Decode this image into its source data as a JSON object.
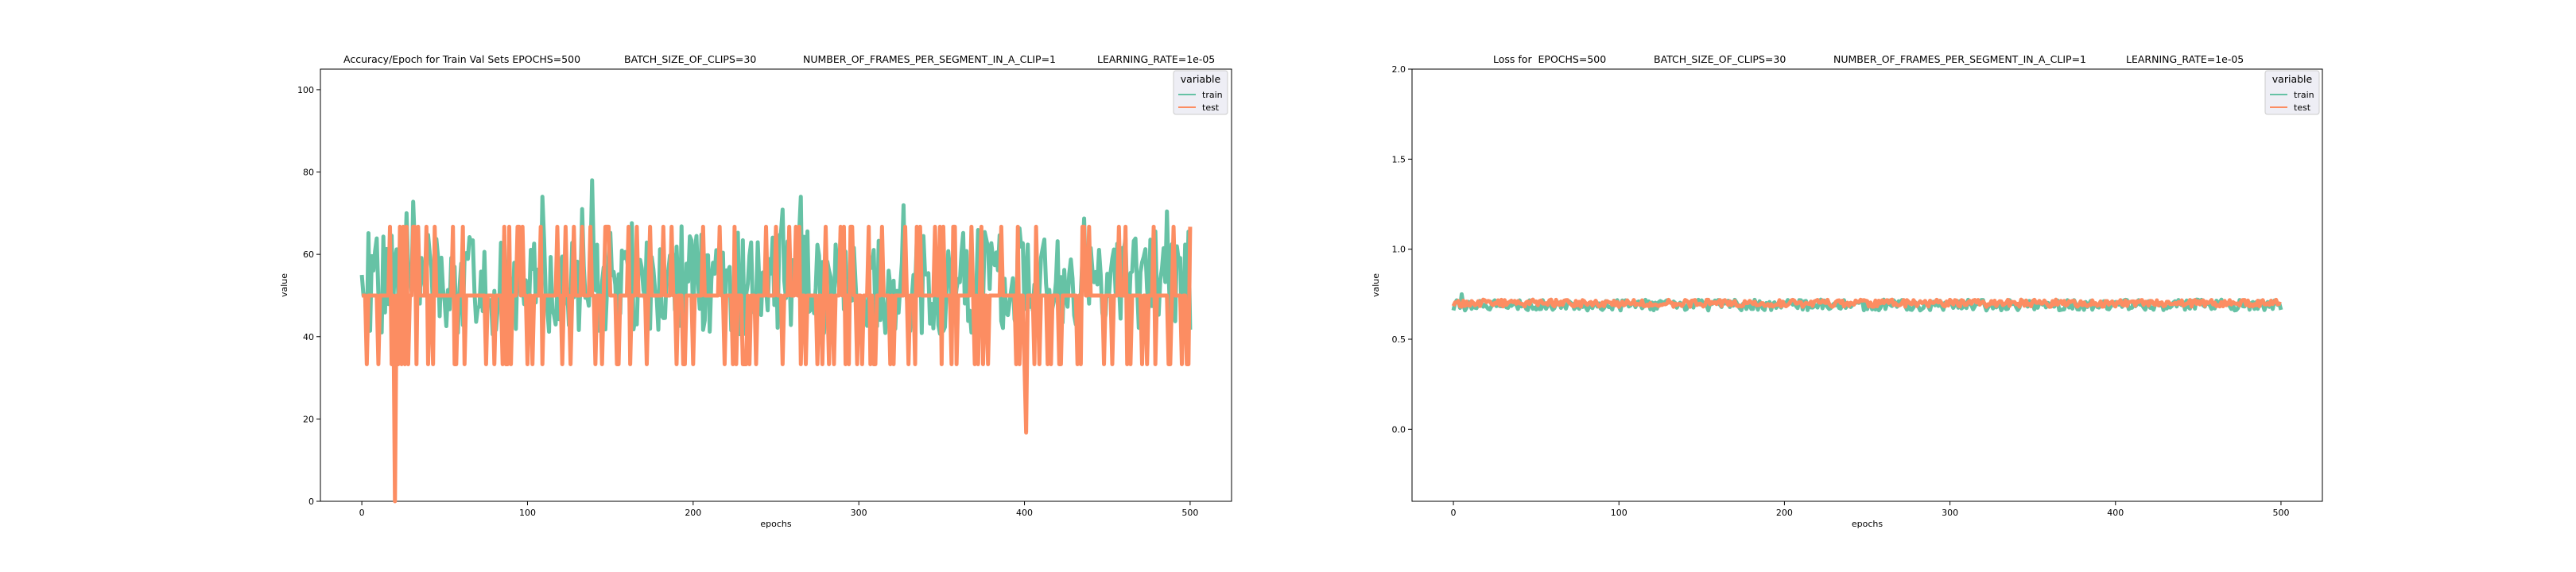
{
  "chart_data": [
    {
      "type": "line",
      "title_segments": [
        "Accuracy/Epoch for Train Val Sets EPOCHS=500",
        "BATCH_SIZE_OF_CLIPS=30",
        "NUMBER_OF_FRAMES_PER_SEGMENT_IN_A_CLIP=1",
        "LEARNING_RATE=1e-05"
      ],
      "xlabel": "epochs",
      "ylabel": "value",
      "xlim": [
        -25,
        525
      ],
      "ylim": [
        0,
        105
      ],
      "xticks": [
        0,
        100,
        200,
        300,
        400,
        500
      ],
      "yticks": [
        0,
        20,
        40,
        60,
        80,
        100
      ],
      "legend": {
        "title": "variable",
        "placement": "top-right",
        "entries": [
          "train",
          "test"
        ]
      },
      "series": [
        {
          "name": "train",
          "color": "#66c2a5",
          "generator": "accuracy_train",
          "n_points": 501,
          "x_start": 0,
          "baseline": 53,
          "spread": 9,
          "peak": 78,
          "peak_epoch": 139
        },
        {
          "name": "test",
          "color": "#fc8d62",
          "generator": "accuracy_test",
          "n_points": 501,
          "x_start": 0,
          "baseline": 50,
          "high": 66.7,
          "low": 33.3,
          "min_value": 0,
          "min_epoch": 20,
          "dip_value": 16.7,
          "dip_epoch": 401
        }
      ]
    },
    {
      "type": "line",
      "title_segments": [
        "Loss for  EPOCHS=500",
        "BATCH_SIZE_OF_CLIPS=30",
        "NUMBER_OF_FRAMES_PER_SEGMENT_IN_A_CLIP=1",
        "LEARNING_RATE=1e-05"
      ],
      "xlabel": "epochs",
      "ylabel": "value",
      "xlim": [
        -25,
        525
      ],
      "ylim": [
        -0.4,
        2.0
      ],
      "xticks": [
        0,
        100,
        200,
        300,
        400,
        500
      ],
      "yticks": [
        0.0,
        0.5,
        1.0,
        1.5,
        2.0
      ],
      "legend": {
        "title": "variable",
        "placement": "top-right",
        "entries": [
          "train",
          "test"
        ]
      },
      "series": [
        {
          "name": "train",
          "color": "#66c2a5",
          "generator": "loss_train",
          "n_points": 501,
          "x_start": 0,
          "baseline": 0.69,
          "spread": 0.03
        },
        {
          "name": "test",
          "color": "#fc8d62",
          "generator": "loss_test",
          "n_points": 501,
          "x_start": 0,
          "baseline": 0.7,
          "spread": 0.02
        }
      ]
    }
  ]
}
